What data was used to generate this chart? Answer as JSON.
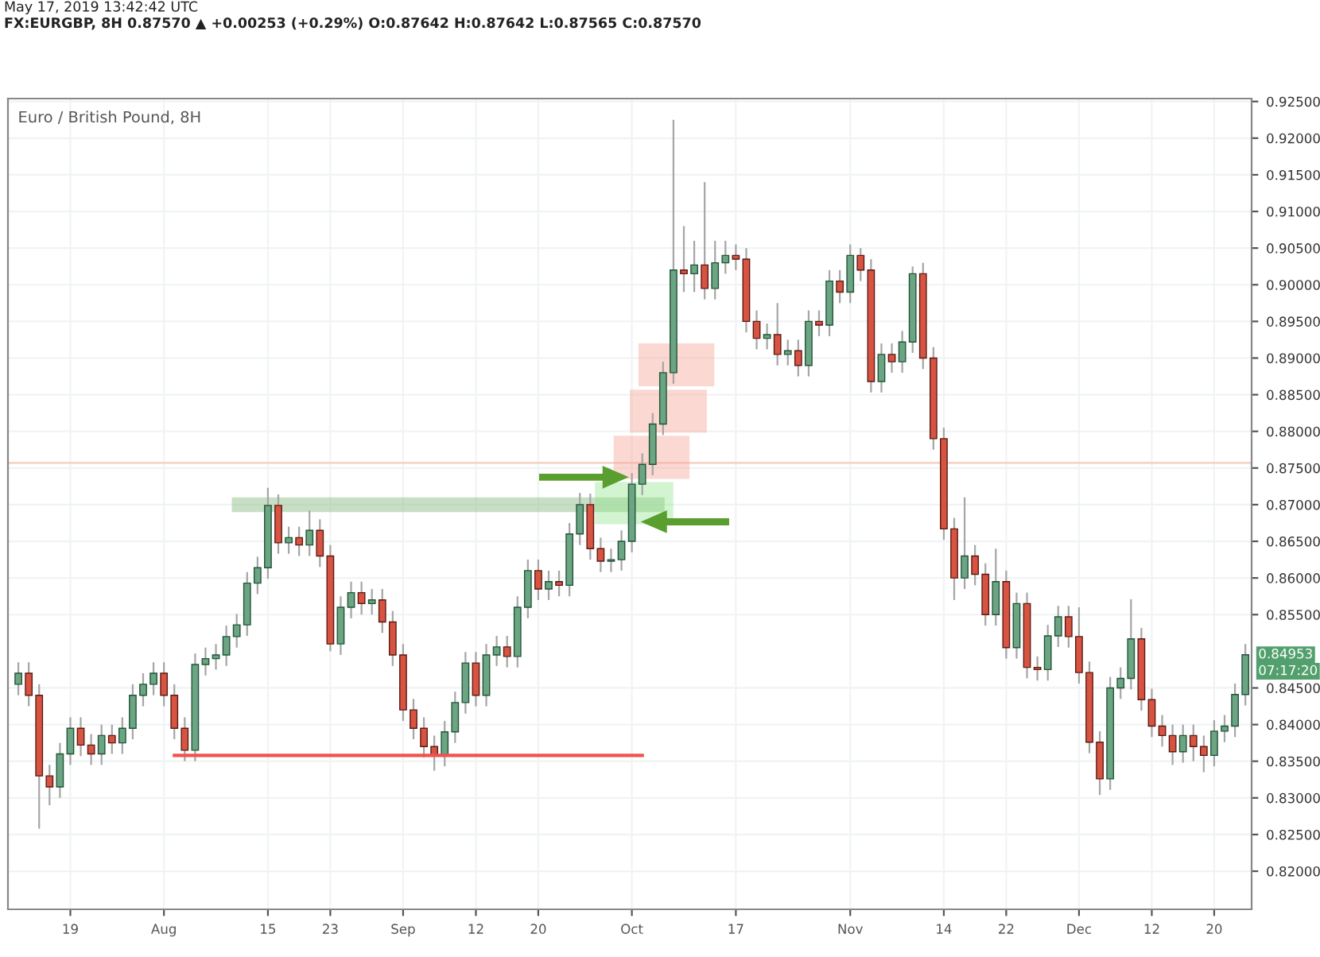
{
  "chart_data": {
    "type": "candlestick",
    "title": "Euro / British Pound, 8H",
    "subtitle": "FX:EURGBP, 8H 0.87570 ▲ +0.00253 (+0.29%) O:0.87642 H:0.87642 L:0.87565 C:0.87570",
    "annotations": [
      "May 17, 2019 13:42:42 UTC",
      "0.84953",
      "07:17:20"
    ],
    "categories": [
      null,
      null,
      null,
      null,
      null,
      "19",
      null,
      null,
      null,
      null,
      null,
      null,
      null,
      null,
      "Aug",
      null,
      null,
      null,
      null,
      null,
      null,
      null,
      null,
      null,
      "15",
      null,
      null,
      null,
      null,
      null,
      "23",
      null,
      null,
      null,
      null,
      null,
      null,
      "Sep",
      null,
      null,
      null,
      null,
      null,
      null,
      "12",
      null,
      null,
      null,
      null,
      null,
      "20",
      null,
      null,
      null,
      null,
      null,
      null,
      null,
      null,
      "Oct",
      null,
      null,
      null,
      null,
      null,
      null,
      null,
      null,
      null,
      "17",
      null,
      null,
      null,
      null,
      null,
      null,
      null,
      null,
      null,
      null,
      "Nov",
      null,
      null,
      null,
      null,
      null,
      null,
      null,
      null,
      "14",
      null,
      null,
      null,
      null,
      null,
      "22",
      null,
      null,
      null,
      null,
      null,
      null,
      "Dec",
      null,
      null,
      null,
      null,
      null,
      null,
      "12",
      null,
      null,
      null,
      null,
      null,
      "20",
      null,
      null,
      null
    ],
    "ohlc": [
      [
        0.8455,
        0.8485,
        0.844,
        0.847
      ],
      [
        0.847,
        0.8485,
        0.8425,
        0.844
      ],
      [
        0.844,
        0.8455,
        0.8258,
        0.833
      ],
      [
        0.833,
        0.8345,
        0.829,
        0.8315
      ],
      [
        0.8315,
        0.8375,
        0.83,
        0.836
      ],
      [
        0.836,
        0.841,
        0.8345,
        0.8395
      ],
      [
        0.8395,
        0.841,
        0.8357,
        0.8372
      ],
      [
        0.8372,
        0.8387,
        0.8345,
        0.836
      ],
      [
        0.836,
        0.84,
        0.8345,
        0.8385
      ],
      [
        0.8385,
        0.84,
        0.836,
        0.8375
      ],
      [
        0.8375,
        0.841,
        0.836,
        0.8395
      ],
      [
        0.8395,
        0.8455,
        0.838,
        0.844
      ],
      [
        0.844,
        0.847,
        0.8425,
        0.8455
      ],
      [
        0.8455,
        0.8485,
        0.844,
        0.847
      ],
      [
        0.847,
        0.8485,
        0.8425,
        0.844
      ],
      [
        0.844,
        0.8455,
        0.838,
        0.8395
      ],
      [
        0.8395,
        0.841,
        0.835,
        0.8365
      ],
      [
        0.8365,
        0.8497,
        0.835,
        0.8482
      ],
      [
        0.8482,
        0.8505,
        0.8467,
        0.849
      ],
      [
        0.849,
        0.851,
        0.8475,
        0.8495
      ],
      [
        0.8495,
        0.8535,
        0.848,
        0.852
      ],
      [
        0.852,
        0.8551,
        0.8505,
        0.8536
      ],
      [
        0.8536,
        0.8608,
        0.8521,
        0.8593
      ],
      [
        0.8593,
        0.8629,
        0.8578,
        0.8614
      ],
      [
        0.8614,
        0.8723,
        0.8599,
        0.8699
      ],
      [
        0.8699,
        0.8714,
        0.8633,
        0.8648
      ],
      [
        0.8648,
        0.867,
        0.8633,
        0.8655
      ],
      [
        0.8655,
        0.867,
        0.863,
        0.8645
      ],
      [
        0.8645,
        0.8692,
        0.863,
        0.8665
      ],
      [
        0.8665,
        0.868,
        0.8615,
        0.863
      ],
      [
        0.863,
        0.8645,
        0.85,
        0.851
      ],
      [
        0.851,
        0.8575,
        0.8495,
        0.856
      ],
      [
        0.856,
        0.8595,
        0.8545,
        0.858
      ],
      [
        0.858,
        0.8595,
        0.855,
        0.8565
      ],
      [
        0.8565,
        0.8585,
        0.855,
        0.857
      ],
      [
        0.857,
        0.8585,
        0.8525,
        0.854
      ],
      [
        0.854,
        0.8555,
        0.848,
        0.8495
      ],
      [
        0.8495,
        0.851,
        0.8405,
        0.842
      ],
      [
        0.842,
        0.8435,
        0.838,
        0.8395
      ],
      [
        0.8395,
        0.841,
        0.8355,
        0.837
      ],
      [
        0.837,
        0.8385,
        0.8337,
        0.8358
      ],
      [
        0.8358,
        0.8405,
        0.8343,
        0.839
      ],
      [
        0.839,
        0.8445,
        0.8375,
        0.843
      ],
      [
        0.843,
        0.8499,
        0.8415,
        0.8484
      ],
      [
        0.8484,
        0.8499,
        0.8425,
        0.844
      ],
      [
        0.844,
        0.851,
        0.8425,
        0.8495
      ],
      [
        0.8495,
        0.8521,
        0.848,
        0.8506
      ],
      [
        0.8506,
        0.8521,
        0.8478,
        0.8493
      ],
      [
        0.8493,
        0.8575,
        0.8478,
        0.856
      ],
      [
        0.856,
        0.8625,
        0.8545,
        0.861
      ],
      [
        0.861,
        0.8625,
        0.857,
        0.8585
      ],
      [
        0.8585,
        0.861,
        0.857,
        0.8595
      ],
      [
        0.8595,
        0.861,
        0.8575,
        0.859
      ],
      [
        0.859,
        0.8675,
        0.8575,
        0.866
      ],
      [
        0.866,
        0.8716,
        0.8645,
        0.87
      ],
      [
        0.87,
        0.8715,
        0.8625,
        0.864
      ],
      [
        0.864,
        0.8655,
        0.8608,
        0.8623
      ],
      [
        0.8623,
        0.864,
        0.8608,
        0.8625
      ],
      [
        0.8625,
        0.8665,
        0.861,
        0.865
      ],
      [
        0.865,
        0.8743,
        0.8635,
        0.8728
      ],
      [
        0.8728,
        0.877,
        0.8713,
        0.8755
      ],
      [
        0.8755,
        0.8825,
        0.874,
        0.881
      ],
      [
        0.881,
        0.8895,
        0.8795,
        0.888
      ],
      [
        0.888,
        0.9225,
        0.8865,
        0.902
      ],
      [
        0.902,
        0.908,
        0.899,
        0.9015
      ],
      [
        0.9015,
        0.906,
        0.899,
        0.9027
      ],
      [
        0.9027,
        0.914,
        0.898,
        0.8995
      ],
      [
        0.8995,
        0.906,
        0.898,
        0.903
      ],
      [
        0.903,
        0.906,
        0.9015,
        0.904
      ],
      [
        0.904,
        0.9055,
        0.902,
        0.9035
      ],
      [
        0.9035,
        0.905,
        0.8935,
        0.895
      ],
      [
        0.895,
        0.8965,
        0.8912,
        0.8927
      ],
      [
        0.8927,
        0.8947,
        0.8912,
        0.8932
      ],
      [
        0.8932,
        0.8975,
        0.889,
        0.8905
      ],
      [
        0.8905,
        0.8925,
        0.889,
        0.891
      ],
      [
        0.891,
        0.8925,
        0.8875,
        0.889
      ],
      [
        0.889,
        0.8965,
        0.8875,
        0.895
      ],
      [
        0.895,
        0.8965,
        0.893,
        0.8945
      ],
      [
        0.8945,
        0.902,
        0.893,
        0.9005
      ],
      [
        0.9005,
        0.902,
        0.8975,
        0.899
      ],
      [
        0.899,
        0.9055,
        0.8975,
        0.904
      ],
      [
        0.904,
        0.905,
        0.9005,
        0.902
      ],
      [
        0.902,
        0.9035,
        0.8853,
        0.8868
      ],
      [
        0.8868,
        0.892,
        0.8853,
        0.8905
      ],
      [
        0.8905,
        0.892,
        0.888,
        0.8895
      ],
      [
        0.8895,
        0.8937,
        0.888,
        0.8922
      ],
      [
        0.8922,
        0.9025,
        0.8907,
        0.9015
      ],
      [
        0.9015,
        0.903,
        0.8885,
        0.89
      ],
      [
        0.89,
        0.8915,
        0.8775,
        0.879
      ],
      [
        0.879,
        0.8805,
        0.8652,
        0.8667
      ],
      [
        0.8667,
        0.8682,
        0.857,
        0.86
      ],
      [
        0.86,
        0.871,
        0.8585,
        0.863
      ],
      [
        0.863,
        0.8645,
        0.859,
        0.8605
      ],
      [
        0.8605,
        0.862,
        0.8535,
        0.855
      ],
      [
        0.855,
        0.864,
        0.8535,
        0.8595
      ],
      [
        0.8595,
        0.861,
        0.849,
        0.8505
      ],
      [
        0.8505,
        0.858,
        0.849,
        0.8565
      ],
      [
        0.8565,
        0.858,
        0.8463,
        0.8478
      ],
      [
        0.8478,
        0.8493,
        0.846,
        0.8475
      ],
      [
        0.8475,
        0.8536,
        0.846,
        0.8521
      ],
      [
        0.8521,
        0.8562,
        0.8506,
        0.8547
      ],
      [
        0.8547,
        0.8562,
        0.8505,
        0.852
      ],
      [
        0.852,
        0.856,
        0.8456,
        0.8471
      ],
      [
        0.8471,
        0.8486,
        0.8361,
        0.8376
      ],
      [
        0.8376,
        0.8391,
        0.8304,
        0.8326
      ],
      [
        0.8326,
        0.8465,
        0.8311,
        0.845
      ],
      [
        0.845,
        0.8478,
        0.8435,
        0.8463
      ],
      [
        0.8463,
        0.8571,
        0.8448,
        0.8517
      ],
      [
        0.8517,
        0.8532,
        0.8419,
        0.8434
      ],
      [
        0.8434,
        0.8449,
        0.8383,
        0.8398
      ],
      [
        0.8398,
        0.8413,
        0.837,
        0.8385
      ],
      [
        0.8385,
        0.84,
        0.8345,
        0.8363
      ],
      [
        0.8363,
        0.84,
        0.8348,
        0.8385
      ],
      [
        0.8385,
        0.84,
        0.835,
        0.837
      ],
      [
        0.837,
        0.8385,
        0.8335,
        0.8358
      ],
      [
        0.8358,
        0.8406,
        0.8343,
        0.8391
      ],
      [
        0.8391,
        0.8413,
        0.8376,
        0.8398
      ],
      [
        0.8398,
        0.8456,
        0.8383,
        0.8441
      ],
      [
        0.8441,
        0.851,
        0.8426,
        0.84953
      ]
    ],
    "colors": [
      "#6ba583",
      "#d75442",
      "#d75442",
      "#d75442",
      "#6ba583",
      "#6ba583",
      "#d75442",
      "#d75442",
      "#6ba583",
      "#d75442",
      "#6ba583",
      "#6ba583",
      "#6ba583",
      "#6ba583",
      "#d75442",
      "#d75442",
      "#d75442",
      "#6ba583",
      "#6ba583",
      "#6ba583",
      "#6ba583",
      "#6ba583",
      "#6ba583",
      "#6ba583",
      "#6ba583",
      "#d75442",
      "#6ba583",
      "#d75442",
      "#6ba583",
      "#d75442",
      "#d75442",
      "#6ba583",
      "#6ba583",
      "#d75442",
      "#6ba583",
      "#d75442",
      "#d75442",
      "#d75442",
      "#d75442",
      "#d75442",
      "#d75442",
      "#6ba583",
      "#6ba583",
      "#6ba583",
      "#d75442",
      "#6ba583",
      "#6ba583",
      "#d75442",
      "#6ba583",
      "#6ba583",
      "#d75442",
      "#6ba583",
      "#d75442",
      "#6ba583",
      "#6ba583",
      "#d75442",
      "#d75442",
      "#6ba583",
      "#6ba583",
      "#6ba583",
      "#6ba583",
      "#6ba583",
      "#6ba583",
      "#6ba583",
      "#d75442",
      "#6ba583",
      "#d75442",
      "#6ba583",
      "#6ba583",
      "#d75442",
      "#d75442",
      "#d75442",
      "#6ba583",
      "#d75442",
      "#6ba583",
      "#d75442",
      "#6ba583",
      "#d75442",
      "#6ba583",
      "#d75442",
      "#6ba583",
      "#d75442",
      "#d75442",
      "#6ba583",
      "#d75442",
      "#6ba583",
      "#6ba583",
      "#d75442",
      "#d75442",
      "#d75442",
      "#d75442",
      "#6ba583",
      "#d75442",
      "#d75442",
      "#6ba583",
      "#d75442",
      "#6ba583",
      "#d75442",
      "#d75442",
      "#6ba583",
      "#6ba583",
      "#d75442",
      "#d75442",
      "#d75442",
      "#d75442",
      "#6ba583",
      "#6ba583",
      "#6ba583",
      "#d75442",
      "#d75442",
      "#d75442",
      "#d75442",
      "#6ba583",
      "#d75442",
      "#d75442",
      "#6ba583",
      "#6ba583",
      "#6ba583",
      "#6ba583"
    ],
    "series": [
      {
        "type": "line",
        "color": "#f0524f",
        "values": [
          null,
          null,
          null,
          null,
          null,
          null,
          null,
          null,
          null,
          null,
          null,
          null,
          null,
          null,
          null,
          0.8358,
          0.8358,
          0.8358,
          0.8358,
          0.8358,
          0.8358,
          0.8358,
          0.8358,
          0.8358,
          0.8358,
          0.8358,
          0.8358,
          0.8358,
          0.8358,
          0.8358,
          0.8358,
          0.8358,
          0.8358,
          0.8358,
          0.8358,
          0.8358,
          0.8358,
          0.8358,
          0.8358,
          0.8358,
          0.8358,
          0.8358,
          0.8358,
          0.8358,
          0.8358,
          0.8358,
          0.8358,
          0.8358,
          0.8358,
          0.8358,
          0.8358,
          0.8358,
          0.8358,
          0.8358,
          0.8358,
          0.8358,
          0.8358,
          0.8358,
          0.8358,
          0.8358,
          0.8358,
          null,
          null,
          null,
          null,
          null,
          null,
          null,
          null,
          null,
          null,
          null,
          null,
          null,
          null,
          null,
          null,
          null,
          null,
          null,
          null,
          null,
          null,
          null,
          null,
          null,
          null,
          null,
          null,
          null,
          null,
          null,
          null,
          null,
          null,
          null,
          null,
          null,
          null,
          null,
          null,
          null,
          null,
          null,
          null,
          null,
          null,
          null,
          null,
          null,
          null,
          null,
          null,
          null,
          null,
          null,
          null,
          null,
          null
        ]
      }
    ],
    "ref_lines": [
      {
        "axis": "y",
        "value": 0.8757,
        "color": "#f6cbbd"
      }
    ],
    "ylim": [
      0.8148,
      0.9254
    ],
    "yticks": [
      {
        "value": 0.82,
        "label": "0.82000"
      },
      {
        "value": 0.825,
        "label": "0.82500"
      },
      {
        "value": 0.83,
        "label": "0.83000"
      },
      {
        "value": 0.835,
        "label": "0.83500"
      },
      {
        "value": 0.84,
        "label": "0.84000"
      },
      {
        "value": 0.845,
        "label": "0.84500"
      },
      {
        "value": 0.855,
        "label": "0.85500"
      },
      {
        "value": 0.86,
        "label": "0.86000"
      },
      {
        "value": 0.865,
        "label": "0.86500"
      },
      {
        "value": 0.87,
        "label": "0.87000"
      },
      {
        "value": 0.875,
        "label": "0.87500"
      },
      {
        "value": 0.88,
        "label": "0.88000"
      },
      {
        "value": 0.885,
        "label": "0.88500"
      },
      {
        "value": 0.89,
        "label": "0.89000"
      },
      {
        "value": 0.895,
        "label": "0.89500"
      },
      {
        "value": 0.9,
        "label": "0.90000"
      },
      {
        "value": 0.905,
        "label": "0.90500"
      },
      {
        "value": 0.91,
        "label": "0.91000"
      },
      {
        "value": 0.915,
        "label": "0.91500"
      },
      {
        "value": 0.92,
        "label": "0.92000"
      },
      {
        "value": 0.925,
        "label": "0.92500"
      }
    ],
    "grid": true
  }
}
